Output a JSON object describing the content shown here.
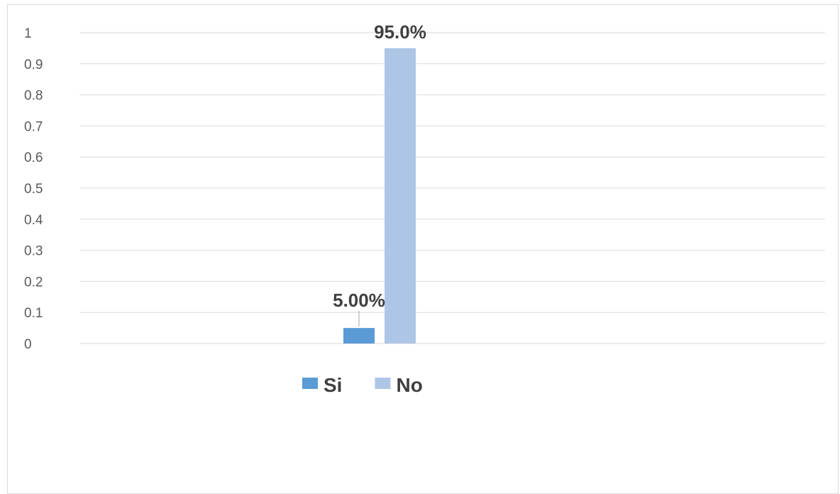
{
  "chart_data": {
    "type": "bar",
    "categories": [
      ""
    ],
    "series": [
      {
        "name": "Si",
        "values": [
          0.05
        ],
        "label": "5.00%",
        "color": "#5b9bd5"
      },
      {
        "name": "No",
        "values": [
          0.95
        ],
        "label": "95.0%",
        "color": "#aec6e6"
      }
    ],
    "title": "",
    "xlabel": "",
    "ylabel": "",
    "ylim": [
      0,
      1
    ],
    "yticks": [
      "0",
      "0.1",
      "0.2",
      "0.3",
      "0.4",
      "0.5",
      "0.6",
      "0.7",
      "0.8",
      "0.9",
      "1"
    ],
    "grid": true,
    "gridline_color": "#d9d9d9",
    "legend_position": "bottom"
  }
}
